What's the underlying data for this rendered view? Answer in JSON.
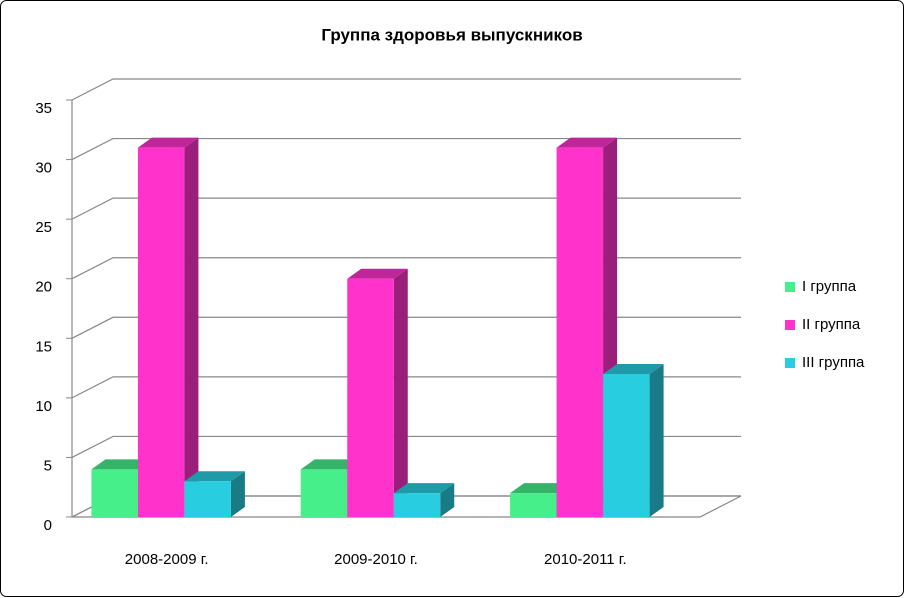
{
  "chart_data": {
    "type": "bar",
    "title": "Группа здоровья выпускников",
    "categories": [
      "2008-2009 г.",
      "2009-2010 г.",
      "2010-2011 г."
    ],
    "series": [
      {
        "name": "I группа",
        "color": "#47ef8a",
        "values": [
          4,
          4,
          2
        ]
      },
      {
        "name": "II группа",
        "color": "#ff33cc",
        "values": [
          31,
          20,
          31
        ]
      },
      {
        "name": "III группа",
        "color": "#28cde0",
        "values": [
          3,
          2,
          12
        ]
      }
    ],
    "ylim": [
      0,
      35
    ],
    "yticks": [
      0,
      5,
      10,
      15,
      20,
      25,
      30,
      35
    ],
    "grid": true,
    "legend": "right"
  }
}
